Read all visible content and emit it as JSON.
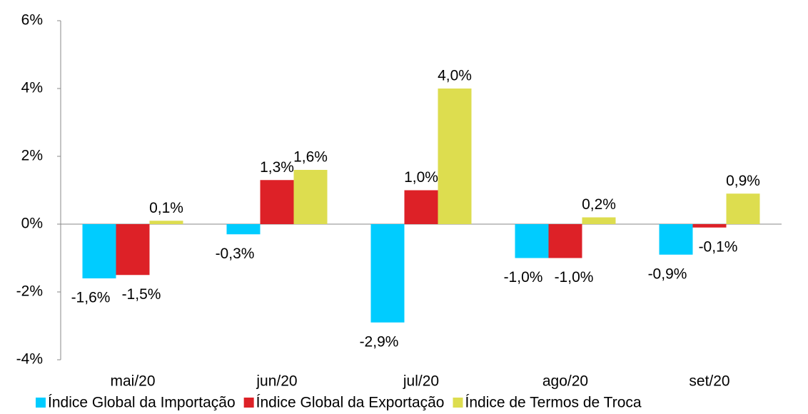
{
  "chart_data": {
    "type": "bar",
    "categories": [
      "mai/20",
      "jun/20",
      "jul/20",
      "ago/20",
      "set/20"
    ],
    "series": [
      {
        "name": "Índice Global da Importação",
        "color": "#00ccff",
        "values": [
          -1.6,
          -0.3,
          -2.9,
          -1.0,
          -0.9
        ],
        "value_labels": [
          "-1,6%",
          "-0,3%",
          "-2,9%",
          "-1,0%",
          "-0,9%"
        ]
      },
      {
        "name": "Índice Global da Exportação",
        "color": "#dd2127",
        "values": [
          -1.5,
          1.3,
          1.0,
          -1.0,
          -0.1
        ],
        "value_labels": [
          "-1,5%",
          "1,3%",
          "1,0%",
          "-1,0%",
          "-0,1%"
        ]
      },
      {
        "name": "Índice de Termos de Troca",
        "color": "#dddd4f",
        "values": [
          0.1,
          1.6,
          4.0,
          0.2,
          0.9
        ],
        "value_labels": [
          "0,1%",
          "1,6%",
          "4,0%",
          "0,2%",
          "0,9%"
        ]
      }
    ],
    "ylim": [
      -4,
      6
    ],
    "yticks": [
      {
        "value": -4,
        "label": "-4%"
      },
      {
        "value": -2,
        "label": "-2%"
      },
      {
        "value": 0,
        "label": "0%"
      },
      {
        "value": 2,
        "label": "2%"
      },
      {
        "value": 4,
        "label": "4%"
      },
      {
        "value": 6,
        "label": "6%"
      }
    ],
    "grid": false,
    "legend": "bottom"
  }
}
